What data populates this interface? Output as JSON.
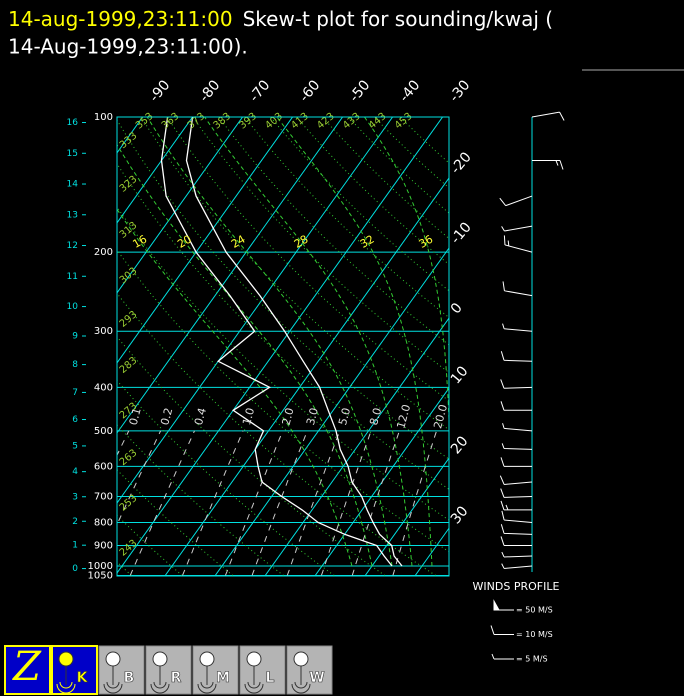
{
  "header": {
    "time": "14-aug-1999,23:11:00",
    "title": "Skew-t plot for sounding/kwaj (",
    "title_line2": "14-Aug-1999,23:11:00)."
  },
  "skewt": {
    "pressure_levels": [
      100,
      200,
      300,
      400,
      500,
      600,
      700,
      800,
      900,
      1000,
      1050
    ],
    "height_km": [
      0,
      1,
      2,
      3,
      4,
      5,
      6,
      7,
      8,
      9,
      10,
      11,
      12,
      13,
      14,
      15,
      16
    ],
    "isotherms_top": [
      -90,
      -80,
      -70,
      -60,
      -50,
      -40,
      -30
    ],
    "isotherms_right": [
      -20,
      -10,
      0,
      10,
      20,
      30
    ],
    "dry_adiabats": [
      243,
      253,
      263,
      273,
      283,
      293,
      303,
      313,
      323,
      333,
      343,
      353,
      363,
      373,
      383,
      393,
      403,
      413,
      423,
      433,
      443,
      453
    ],
    "moist_adiabats": [
      16,
      20,
      24,
      28,
      32,
      36
    ],
    "mixing_ratios": [
      {
        "value": 0.1,
        "label": "0.1"
      },
      {
        "value": 0.2,
        "label": "0.2"
      },
      {
        "value": 0.4,
        "label": "0.4"
      },
      {
        "value": 1,
        "label": "1.0"
      },
      {
        "value": 2,
        "label": "2.0"
      },
      {
        "value": 3,
        "label": "3.0"
      },
      {
        "value": 5,
        "label": "5.0"
      },
      {
        "value": 8,
        "label": "8.0"
      },
      {
        "value": 12,
        "label": "12.0"
      },
      {
        "value": 20,
        "label": "20.0"
      }
    ],
    "sounding": {
      "pressure": [
        1000,
        950,
        900,
        850,
        800,
        750,
        700,
        650,
        600,
        550,
        500,
        450,
        400,
        350,
        300,
        250,
        200,
        150,
        125,
        100
      ],
      "temperature": [
        26,
        23,
        21,
        17,
        14,
        11,
        8,
        4,
        1,
        -3,
        -6.5,
        -11,
        -16,
        -23,
        -31,
        -41,
        -54,
        -68,
        -75,
        -80
      ],
      "dewpoint": [
        24,
        21,
        18,
        10,
        3,
        -2,
        -8,
        -14,
        -17,
        -20,
        -21,
        -30,
        -26,
        -40,
        -37,
        -47,
        -60,
        -74,
        -80,
        -85
      ]
    }
  },
  "winds": {
    "title": "WINDS PROFILE",
    "legend": [
      {
        "speed": 50,
        "label": "= 50 M/S"
      },
      {
        "speed": 10,
        "label": "= 10 M/S"
      },
      {
        "speed": 5,
        "label": "= 5 M/S"
      }
    ],
    "pressure": [
      1000,
      950,
      900,
      850,
      800,
      750,
      700,
      650,
      600,
      550,
      500,
      450,
      400,
      350,
      300,
      250,
      200,
      175,
      150,
      125,
      100
    ],
    "speed": [
      8,
      9,
      10,
      10,
      12,
      15,
      14,
      12,
      10,
      8,
      8,
      10,
      12,
      10,
      8,
      12,
      15,
      8,
      10,
      15,
      10
    ],
    "direction": [
      265,
      268,
      270,
      272,
      275,
      270,
      268,
      265,
      270,
      272,
      275,
      270,
      268,
      272,
      275,
      280,
      285,
      260,
      250,
      90,
      80
    ]
  },
  "toolbar": [
    "Z",
    "K",
    "B",
    "R",
    "M",
    "L",
    "W"
  ]
}
